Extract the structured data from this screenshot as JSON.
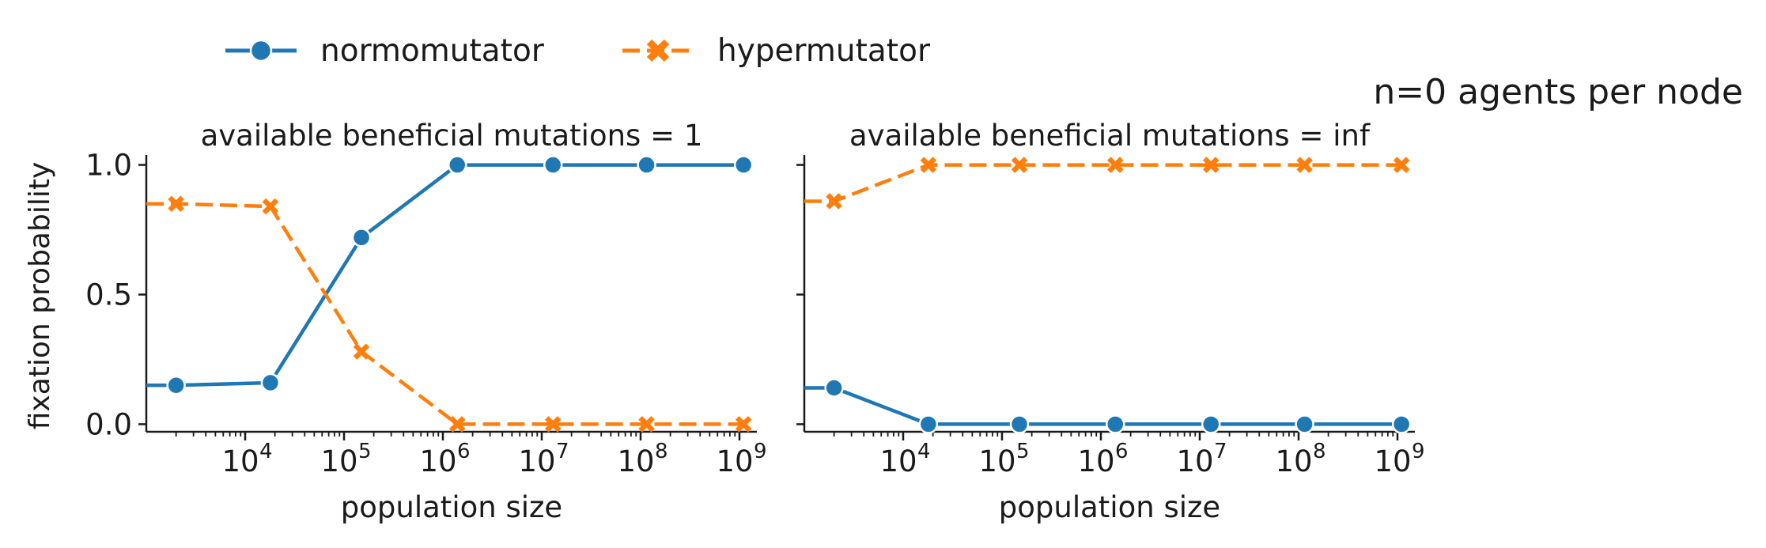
{
  "figure": {
    "suptitle": "n=0 agents per node",
    "ylabel": "fixation probability"
  },
  "legend": {
    "placement": "top-left",
    "items": [
      {
        "label": "normomutator",
        "color": "#1f77b4",
        "marker": "circle",
        "linestyle": "solid"
      },
      {
        "label": "hypermutator",
        "color": "#ff7f0e",
        "marker": "x",
        "linestyle": "dashed"
      }
    ]
  },
  "chart_data": [
    {
      "type": "line",
      "title": "available beneficial mutations = 1",
      "xlabel": "population size",
      "ylabel": "fixation probability",
      "xscale": "log",
      "xlim": [
        1000,
        1500000000
      ],
      "ylim": [
        -0.02,
        1.02
      ],
      "x": [
        2000,
        18000,
        150000,
        1400000,
        13000000,
        115000000,
        1100000000
      ],
      "xticks": [
        10000,
        100000,
        1000000,
        10000000,
        100000000,
        1000000000
      ],
      "xtick_labels": [
        {
          "base": "10",
          "exp": "4"
        },
        {
          "base": "10",
          "exp": "5"
        },
        {
          "base": "10",
          "exp": "6"
        },
        {
          "base": "10",
          "exp": "7"
        },
        {
          "base": "10",
          "exp": "8"
        },
        {
          "base": "10",
          "exp": "9"
        }
      ],
      "yticks": [
        "0.0",
        "0.5",
        "1.0"
      ],
      "grid": false,
      "series": [
        {
          "name": "normomutator",
          "color": "#1f77b4",
          "values": [
            0.15,
            0.16,
            0.72,
            1.0,
            1.0,
            1.0,
            1.0
          ]
        },
        {
          "name": "hypermutator",
          "color": "#ff7f0e",
          "values": [
            0.85,
            0.84,
            0.28,
            0.0,
            0.0,
            0.0,
            0.0
          ]
        }
      ]
    },
    {
      "type": "line",
      "title": "available beneficial mutations = inf",
      "xlabel": "population size",
      "xscale": "log",
      "xlim": [
        1000,
        1500000000
      ],
      "ylim": [
        -0.02,
        1.02
      ],
      "x": [
        2000,
        18000,
        150000,
        1400000,
        13000000,
        115000000,
        1100000000
      ],
      "xticks": [
        10000,
        100000,
        1000000,
        10000000,
        100000000,
        1000000000
      ],
      "xtick_labels": [
        {
          "base": "10",
          "exp": "4"
        },
        {
          "base": "10",
          "exp": "5"
        },
        {
          "base": "10",
          "exp": "6"
        },
        {
          "base": "10",
          "exp": "7"
        },
        {
          "base": "10",
          "exp": "8"
        },
        {
          "base": "10",
          "exp": "9"
        }
      ],
      "grid": false,
      "series": [
        {
          "name": "normomutator",
          "color": "#1f77b4",
          "values": [
            0.14,
            0.0,
            0.0,
            0.0,
            0.0,
            0.0,
            0.0
          ]
        },
        {
          "name": "hypermutator",
          "color": "#ff7f0e",
          "values": [
            0.86,
            1.0,
            1.0,
            1.0,
            1.0,
            1.0,
            1.0
          ]
        }
      ]
    }
  ]
}
